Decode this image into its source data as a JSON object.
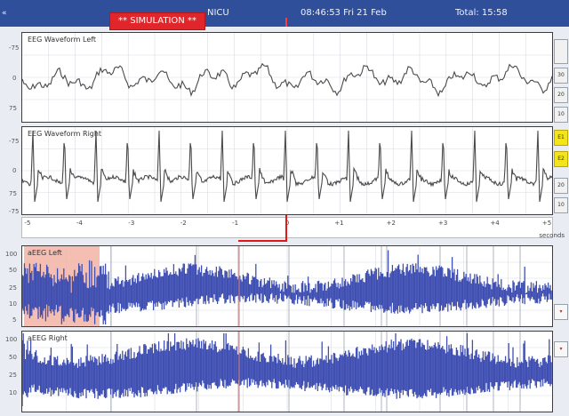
{
  "topbar": {
    "left_arrow": "«",
    "simulation_badge": "** SIMULATION **",
    "unit": "NICU",
    "clock": "08:46:53 Fri 21 Feb",
    "total": "Total: 15:58"
  },
  "panels": {
    "eeg_left": {
      "title": "EEG Waveform Left",
      "y_labels": [
        "-75",
        "0",
        "75"
      ]
    },
    "eeg_right": {
      "title": "EEG Waveform Right",
      "y_labels": [
        "-75",
        "0",
        "75",
        "-75"
      ]
    },
    "aeeg_1": {
      "title": "aEEG Left",
      "y_labels": [
        "100",
        "50",
        "25",
        "10",
        "5"
      ]
    },
    "aeeg_2": {
      "title": "aEEG Right",
      "y_labels": [
        "100",
        "50",
        "25",
        "10"
      ]
    }
  },
  "time_axis": {
    "ticks": [
      "-5",
      "-4",
      "-3",
      "-2",
      "-1",
      "0",
      "+1",
      "+2",
      "+3",
      "+4",
      "+5"
    ],
    "unit": "seconds"
  },
  "side_buttons": [
    {
      "label": "",
      "style": "big"
    },
    {
      "label": "30",
      "style": "normal"
    },
    {
      "label": "20",
      "style": "normal"
    },
    {
      "label": "10",
      "style": "normal"
    },
    {
      "label": "E1",
      "style": "yellow"
    },
    {
      "label": "E2",
      "style": "yellow"
    },
    {
      "label": "20",
      "style": "normal"
    },
    {
      "label": "10",
      "style": "normal"
    }
  ],
  "colors": {
    "topbar": "#2f4f9a",
    "simulation": "#e0262b",
    "aeeg_trace": "#3f4fb2",
    "artifact": "#f3b3a4",
    "eeg_trace": "#4a4a4a",
    "cursor": "#e01818"
  }
}
